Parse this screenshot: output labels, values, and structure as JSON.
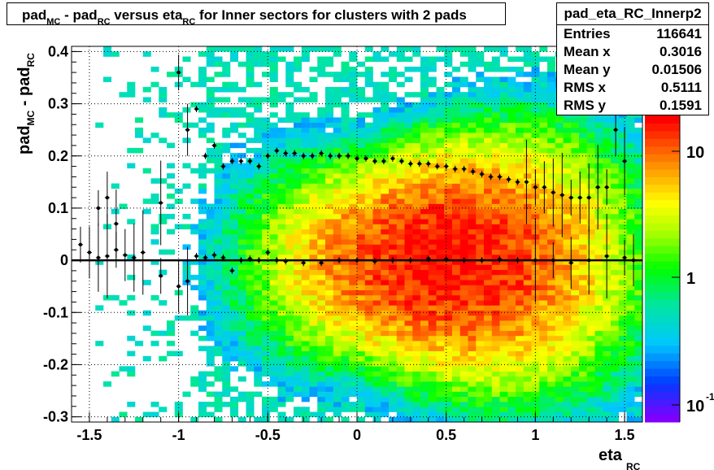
{
  "title": {
    "parts": [
      {
        "text": "pad",
        "sub": false
      },
      {
        "text": "MC",
        "sub": true
      },
      {
        "text": " - pad",
        "sub": false
      },
      {
        "text": "RC",
        "sub": true
      },
      {
        "text": " versus eta",
        "sub": false
      },
      {
        "text": "RC",
        "sub": true
      },
      {
        "text": " for Inner sectors for clusters with 2 pads",
        "sub": false
      }
    ]
  },
  "stats": {
    "name": "pad_eta_RC_Innerp2",
    "rows": [
      {
        "label": "Entries",
        "value": "116641"
      },
      {
        "label": "Mean x",
        "value": "0.3016"
      },
      {
        "label": "Mean y",
        "value": "0.01506"
      },
      {
        "label": "RMS x",
        "value": "0.5111"
      },
      {
        "label": "RMS y",
        "value": "0.1591"
      }
    ]
  },
  "chart_data": {
    "type": "heatmap",
    "xlabel": {
      "main": "eta",
      "sub": "RC"
    },
    "ylabel": {
      "main1": "pad",
      "sub1": "MC",
      "main2": " - pad",
      "sub2": "RC"
    },
    "xlim": [
      -1.6,
      1.6
    ],
    "ylim": [
      -0.31,
      0.41
    ],
    "x_ticks": [
      "-1.5",
      "-1",
      "-0.5",
      "0",
      "0.5",
      "1",
      "1.5"
    ],
    "y_ticks": [
      "-0.3",
      "-0.2",
      "-0.1",
      "0",
      "0.1",
      "0.2",
      "0.3",
      "0.4"
    ],
    "z_scale": "log",
    "z_ticks": [
      {
        "base": "10",
        "exp": "-1"
      },
      {
        "base": "1",
        "exp": ""
      },
      {
        "base": "10",
        "exp": ""
      }
    ],
    "grid": true,
    "colors": {
      "low": "#7f00ff",
      "mid": "#00ff00",
      "high": "#ff0000"
    },
    "overlay_mean_profile": {
      "x": [
        -1.55,
        -1.5,
        -1.45,
        -1.4,
        -1.35,
        -1.3,
        -1.25,
        -1.2,
        -1.1,
        -1.0,
        -0.95,
        -0.9,
        -0.85,
        -0.8,
        -0.75,
        -0.7,
        -0.65,
        -0.6,
        -0.55,
        -0.5,
        -0.45,
        -0.4,
        -0.3,
        -0.2,
        -0.1,
        0.0,
        0.1,
        0.2,
        0.3,
        0.4,
        0.5,
        0.6,
        0.7,
        0.8,
        0.9,
        1.0,
        1.1,
        1.2,
        1.3,
        1.4,
        1.5,
        1.55
      ],
      "y": [
        0.03,
        0.015,
        0.005,
        0.008,
        0.02,
        0.01,
        0.005,
        0.015,
        -0.03,
        -0.05,
        -0.04,
        0.008,
        0.005,
        0.01,
        0.005,
        -0.02,
        0.0,
        0.003,
        0.0,
        0.015,
        0.0,
        -0.002,
        -0.005,
        -0.005,
        0.0,
        0.0,
        -0.002,
        0.0,
        0.0,
        0.003,
        0.002,
        0.0,
        0.0,
        0.002,
        0.0,
        0.0,
        0.0,
        -0.005,
        0.0,
        0.008,
        0.005,
        0.0
      ]
    },
    "overlay_rms_profile": {
      "x": [
        -1.45,
        -1.4,
        -1.35,
        -1.1,
        -1.0,
        -0.95,
        -0.9,
        -0.85,
        -0.8,
        -0.75,
        -0.7,
        -0.65,
        -0.6,
        -0.55,
        -0.5,
        -0.45,
        -0.4,
        -0.35,
        -0.3,
        -0.25,
        -0.2,
        -0.15,
        -0.1,
        -0.05,
        0.0,
        0.05,
        0.1,
        0.15,
        0.2,
        0.25,
        0.3,
        0.35,
        0.4,
        0.45,
        0.5,
        0.55,
        0.6,
        0.65,
        0.7,
        0.75,
        0.8,
        0.85,
        0.9,
        0.95,
        1.0,
        1.05,
        1.1,
        1.15,
        1.2,
        1.25,
        1.3,
        1.35,
        1.4,
        1.45,
        1.5
      ],
      "y": [
        0.1,
        0.12,
        0.07,
        0.11,
        0.36,
        0.25,
        0.29,
        0.2,
        0.22,
        0.18,
        0.19,
        0.19,
        0.19,
        0.18,
        0.2,
        0.21,
        0.205,
        0.205,
        0.2,
        0.2,
        0.205,
        0.2,
        0.2,
        0.2,
        0.195,
        0.195,
        0.19,
        0.19,
        0.195,
        0.19,
        0.185,
        0.185,
        0.185,
        0.18,
        0.18,
        0.175,
        0.175,
        0.17,
        0.165,
        0.16,
        0.16,
        0.155,
        0.15,
        0.15,
        0.14,
        0.14,
        0.13,
        0.125,
        0.12,
        0.12,
        0.12,
        0.14,
        0.14,
        0.25,
        0.19
      ]
    }
  }
}
